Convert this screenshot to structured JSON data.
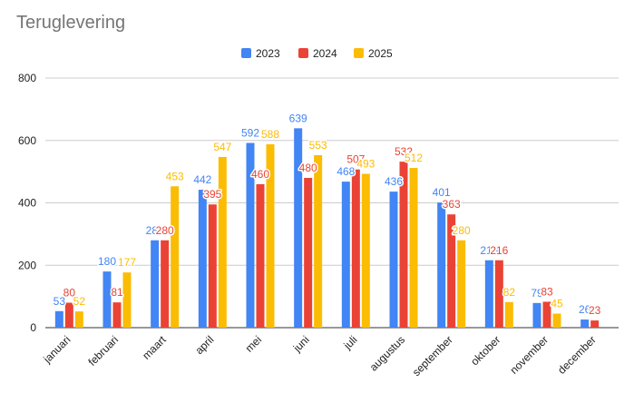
{
  "chart_data": {
    "type": "bar",
    "title": "Teruglevering",
    "categories": [
      "januari",
      "februari",
      "maart",
      "april",
      "mei",
      "juni",
      "juli",
      "augustus",
      "september",
      "oktober",
      "november",
      "december"
    ],
    "series": [
      {
        "name": "2023",
        "color": "#4285F4",
        "values": [
          53,
          180,
          280,
          442,
          592,
          639,
          468,
          436,
          401,
          216,
          79,
          26
        ]
      },
      {
        "name": "2024",
        "color": "#EA4335",
        "values": [
          80,
          81,
          280,
          395,
          460,
          480,
          507,
          532,
          363,
          216,
          83,
          23
        ]
      },
      {
        "name": "2025",
        "color": "#FBBC04",
        "values": [
          52,
          177,
          453,
          547,
          588,
          553,
          493,
          512,
          280,
          82,
          45,
          null
        ]
      }
    ],
    "ylim": [
      0,
      800
    ],
    "yticks": [
      0,
      200,
      400,
      600,
      800
    ],
    "xlabel": "",
    "ylabel": "",
    "legend_position": "top-center",
    "grid": true
  }
}
